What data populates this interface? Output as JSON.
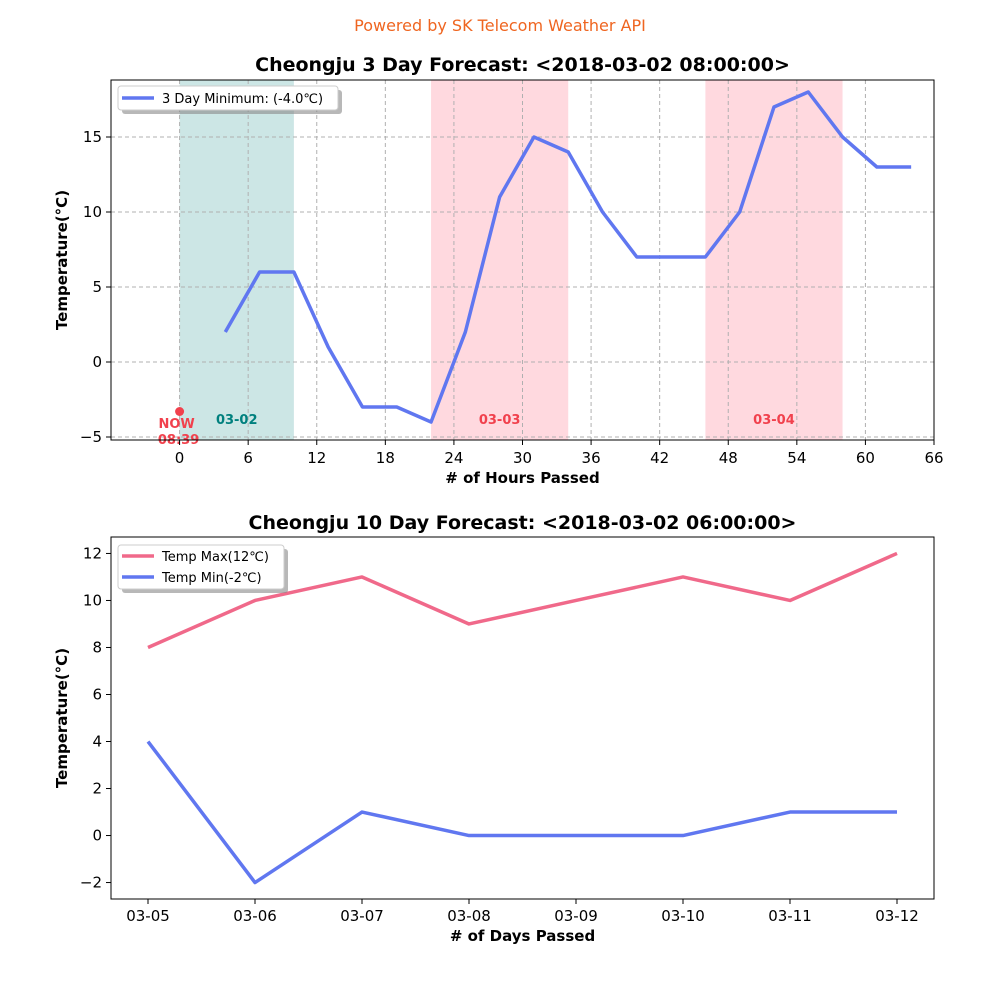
{
  "header": {
    "credit": "Powered by SK Telecom Weather API"
  },
  "colors": {
    "min_line": "#6077f0",
    "max_line": "#f0698a",
    "day1_shade": "#cce6e5",
    "day2_shade": "#ffd9df",
    "now_marker": "#f1414d",
    "day1_label": "#00807e",
    "day2_label": "#f1414d",
    "grid": "#b0b0b0",
    "credit": "#ef6520"
  },
  "chart_data": [
    {
      "type": "line",
      "title": "Cheongju 3 Day Forecast: <2018-03-02 08:00:00>",
      "xlabel": "# of Hours Passed",
      "ylabel": "Temperature(°C)",
      "xlim": [
        -6,
        66
      ],
      "ylim": [
        -5.2,
        18.8
      ],
      "xticks": [
        0,
        6,
        12,
        18,
        24,
        30,
        36,
        42,
        48,
        54,
        60,
        66
      ],
      "xtick_labels": [
        "0",
        "6",
        "12",
        "18",
        "24",
        "30",
        "36",
        "42",
        "48",
        "54",
        "60",
        "66"
      ],
      "yticks": [
        -5,
        0,
        5,
        10,
        15
      ],
      "ytick_labels": [
        "−5",
        "0",
        "5",
        "10",
        "15"
      ],
      "grid": true,
      "legend_position": "top-left",
      "series": [
        {
          "name": "3 Day Minimum: (-4.0℃)",
          "color": "#6077f0",
          "x": [
            4,
            7,
            10,
            13,
            16,
            19,
            22,
            25,
            28,
            31,
            34,
            37,
            40,
            43,
            46,
            49,
            52,
            55,
            58,
            61,
            64
          ],
          "y": [
            2,
            6,
            6,
            1,
            -3,
            -3,
            -4,
            2,
            11,
            15,
            14,
            10,
            7,
            7,
            7,
            10,
            17,
            18,
            15,
            13,
            13
          ]
        }
      ],
      "day_bands": [
        {
          "label": "03-02",
          "start": 0,
          "end": 10,
          "style": "day1"
        },
        {
          "label": "03-03",
          "start": 22,
          "end": 34,
          "style": "day2"
        },
        {
          "label": "03-04",
          "start": 46,
          "end": 58,
          "style": "day2"
        }
      ],
      "now_marker": {
        "x": 0,
        "y": -3.3,
        "label": "NOW",
        "time": "08:39"
      }
    },
    {
      "type": "line",
      "title": "Cheongju 10 Day Forecast: <2018-03-02 06:00:00>",
      "xlabel": "# of Days Passed",
      "ylabel": "Temperature(°C)",
      "categories": [
        "03-05",
        "03-06",
        "03-07",
        "03-08",
        "03-09",
        "03-10",
        "03-11",
        "03-12"
      ],
      "ylim": [
        -2.7,
        12.7
      ],
      "yticks": [
        -2,
        0,
        2,
        4,
        6,
        8,
        10,
        12
      ],
      "ytick_labels": [
        "−2",
        "0",
        "2",
        "4",
        "6",
        "8",
        "10",
        "12"
      ],
      "grid": false,
      "legend_position": "top-left",
      "series": [
        {
          "name": "Temp Max(12℃)",
          "color": "#f0698a",
          "values": [
            8,
            10,
            11,
            9,
            10,
            11,
            10,
            12
          ]
        },
        {
          "name": "Temp Min(-2℃)",
          "color": "#6077f0",
          "values": [
            4,
            -2,
            1,
            0,
            0,
            0,
            1,
            1
          ]
        }
      ]
    }
  ]
}
